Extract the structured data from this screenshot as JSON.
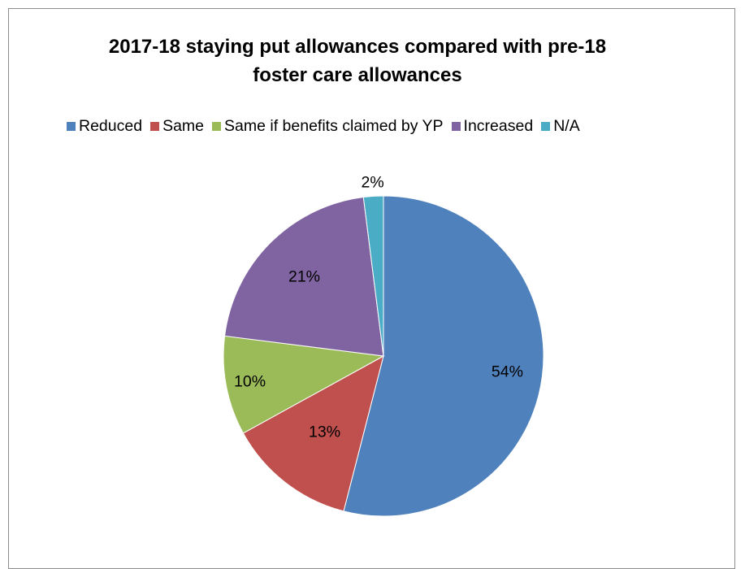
{
  "chart_data": {
    "type": "pie",
    "title_lines": [
      "2017-18 staying put allowances compared with pre-18",
      "foster care allowances"
    ],
    "categories": [
      "Reduced",
      "Same",
      "Same if benefits claimed by YP",
      "Increased",
      "N/A"
    ],
    "values": [
      54,
      13,
      10,
      21,
      2
    ],
    "labels": [
      "54%",
      "13%",
      "10%",
      "21%",
      "2%"
    ],
    "colors": [
      "#4f81bd",
      "#c0504d",
      "#9bbb59",
      "#8064a2",
      "#4bacc6"
    ],
    "legend_position": "top",
    "start": "12 o'clock, clockwise"
  }
}
